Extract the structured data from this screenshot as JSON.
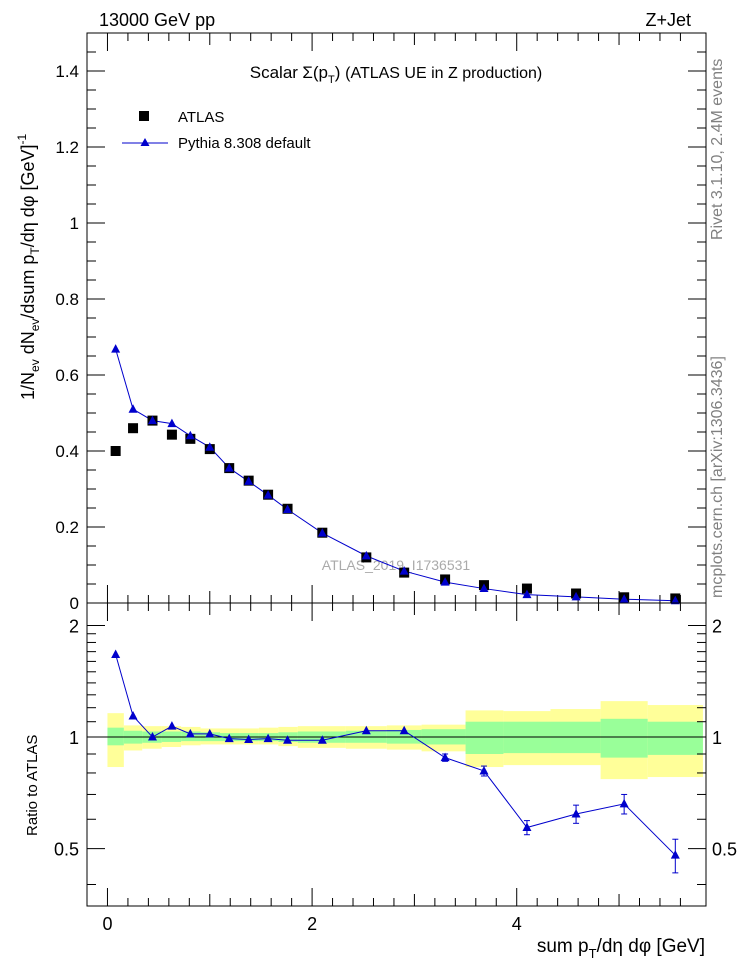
{
  "header": {
    "energy": "13000 GeV pp",
    "process": "Z+Jet"
  },
  "side_labels": {
    "rivet": "Rivet 3.1.10, 2.4M events",
    "mcplots": "mcplots.cern.ch [arXiv:1306.3436]"
  },
  "watermark": "ATLAS_2019_I1736531",
  "chart_data": [
    {
      "type": "scatter",
      "title_main": "Scalar",
      "title_rest": "(ATLAS UE in Z production)",
      "ylabel": "1/N_ev dN_ev/dsum p_T/dη dφ [GeV]^-1",
      "ylim": [
        0,
        1.5
      ],
      "yticks": [
        0,
        0.2,
        0.4,
        0.6,
        0.8,
        1,
        1.2,
        1.4
      ],
      "ytick_labels": [
        "0",
        "0.2",
        "0.4",
        "0.6",
        "0.8",
        "1",
        "1.2",
        "1.4"
      ],
      "xlim": [
        -0.2,
        5.85
      ],
      "legend_position": "top-left",
      "series": [
        {
          "name": "ATLAS",
          "marker": "square",
          "color": "#000000",
          "x": [
            0.08,
            0.25,
            0.44,
            0.63,
            0.81,
            1.0,
            1.19,
            1.38,
            1.57,
            1.76,
            2.1,
            2.53,
            2.9,
            3.3,
            3.68,
            4.1,
            4.58,
            5.05,
            5.55
          ],
          "values": [
            0.4,
            0.46,
            0.48,
            0.443,
            0.432,
            0.405,
            0.355,
            0.322,
            0.285,
            0.248,
            0.185,
            0.12,
            0.08,
            0.062,
            0.047,
            0.038,
            0.025,
            0.015,
            0.012
          ]
        },
        {
          "name": "Pythia 8.308 default",
          "marker": "triangle",
          "color": "#0000cc",
          "x": [
            0.08,
            0.25,
            0.44,
            0.63,
            0.81,
            1.0,
            1.19,
            1.38,
            1.57,
            1.76,
            2.1,
            2.53,
            2.9,
            3.3,
            3.68,
            4.1,
            4.58,
            5.05,
            5.55
          ],
          "values": [
            0.668,
            0.51,
            0.48,
            0.472,
            0.44,
            0.41,
            0.355,
            0.32,
            0.284,
            0.246,
            0.184,
            0.124,
            0.084,
            0.055,
            0.038,
            0.022,
            0.016,
            0.01,
            0.006
          ]
        }
      ]
    },
    {
      "type": "line",
      "ylabel": "Ratio to ATLAS",
      "xlabel": "sum p_T/dη dφ [GeV]",
      "ylim": [
        0.35,
        2.3
      ],
      "xlim": [
        -0.2,
        5.85
      ],
      "yticks": [
        0.5,
        1,
        2
      ],
      "ytick_labels": [
        "0.5",
        "1",
        "2"
      ],
      "xticks": [
        0,
        2,
        4
      ],
      "xtick_labels": [
        "0",
        "2",
        "4"
      ],
      "bands": {
        "edges": [
          0,
          0.16,
          0.34,
          0.53,
          0.72,
          0.91,
          1.1,
          1.29,
          1.48,
          1.67,
          1.86,
          2.33,
          2.73,
          3.07,
          3.5,
          3.87,
          4.33,
          4.82,
          5.28,
          5.82
        ],
        "green_lo": [
          0.95,
          0.96,
          0.965,
          0.97,
          0.975,
          0.975,
          0.975,
          0.975,
          0.975,
          0.97,
          0.965,
          0.965,
          0.96,
          0.955,
          0.9,
          0.905,
          0.905,
          0.88,
          0.895
        ],
        "green_hi": [
          1.06,
          1.04,
          1.035,
          1.035,
          1.035,
          1.03,
          1.025,
          1.025,
          1.025,
          1.03,
          1.035,
          1.04,
          1.045,
          1.05,
          1.1,
          1.1,
          1.1,
          1.12,
          1.1
        ],
        "yellow_lo": [
          0.83,
          0.92,
          0.93,
          0.94,
          0.95,
          0.955,
          0.955,
          0.955,
          0.955,
          0.945,
          0.935,
          0.93,
          0.925,
          0.915,
          0.83,
          0.84,
          0.84,
          0.77,
          0.78
        ],
        "yellow_hi": [
          1.16,
          1.075,
          1.07,
          1.07,
          1.065,
          1.055,
          1.055,
          1.055,
          1.06,
          1.065,
          1.07,
          1.07,
          1.075,
          1.08,
          1.18,
          1.175,
          1.19,
          1.25,
          1.22
        ]
      },
      "series": [
        {
          "name": "Pythia 8.308 default",
          "color": "#0000cc",
          "x": [
            0.08,
            0.25,
            0.44,
            0.63,
            0.81,
            1.0,
            1.19,
            1.38,
            1.57,
            1.76,
            2.1,
            2.53,
            2.9,
            3.3,
            3.68,
            4.1,
            4.58,
            5.05,
            5.55
          ],
          "values": [
            1.67,
            1.14,
            1.0,
            1.07,
            1.02,
            1.02,
            0.99,
            0.985,
            0.99,
            0.98,
            0.98,
            1.04,
            1.04,
            0.88,
            0.81,
            0.57,
            0.62,
            0.66,
            0.48
          ],
          "err": [
            0,
            0,
            0,
            0,
            0,
            0,
            0,
            0,
            0,
            0,
            0,
            0,
            0,
            0.02,
            0.025,
            0.025,
            0.035,
            0.04,
            0.05
          ]
        }
      ]
    }
  ]
}
